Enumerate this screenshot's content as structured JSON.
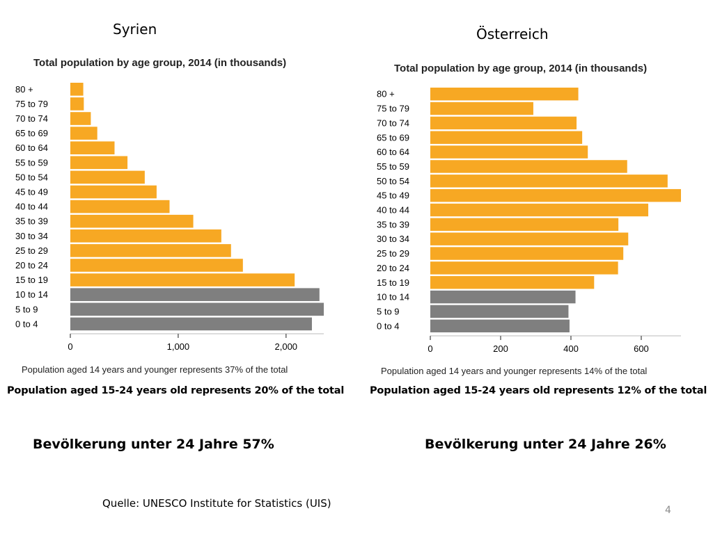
{
  "chart_data": [
    {
      "type": "bar",
      "orientation": "horizontal",
      "country": "Syrien",
      "title": "Total population by age group, 2014 (in thousands)",
      "categories": [
        "80 +",
        "75 to 79",
        "70 to 74",
        "65 to 69",
        "60 to 64",
        "55 to 59",
        "50 to 54",
        "45 to 49",
        "40 to 44",
        "35 to 39",
        "30 to 34",
        "25 to 29",
        "20 to 24",
        "15 to 19",
        "10 to 14",
        "5 to 9",
        "0 to 4"
      ],
      "values": [
        120,
        125,
        190,
        250,
        410,
        530,
        690,
        800,
        920,
        1140,
        1400,
        1490,
        1600,
        2080,
        2310,
        2350,
        2240
      ],
      "highlight": [
        false,
        false,
        false,
        false,
        false,
        false,
        false,
        false,
        false,
        false,
        false,
        false,
        false,
        false,
        true,
        true,
        true
      ],
      "xticks": [
        0,
        1000,
        2000
      ],
      "xtick_labels": [
        "0",
        "1,000",
        "2,000"
      ],
      "xlim": [
        0,
        2350
      ],
      "footnote": "Population aged 14 years and younger represents 37% of the total"
    },
    {
      "type": "bar",
      "orientation": "horizontal",
      "country": "Österreich",
      "title": "Total population by age group, 2014 (in thousands)",
      "categories": [
        "80 +",
        "75 to 79",
        "70 to 74",
        "65 to 69",
        "60 to 64",
        "55 to 59",
        "50 to 54",
        "45 to 49",
        "40 to 44",
        "35 to 39",
        "30 to 34",
        "25 to 29",
        "20 to 24",
        "15 to 19",
        "10 to 14",
        "5 to 9",
        "0 to 4"
      ],
      "values": [
        421,
        293,
        416,
        432,
        448,
        560,
        675,
        713,
        620,
        535,
        563,
        549,
        534,
        466,
        413,
        393,
        396
      ],
      "highlight": [
        false,
        false,
        false,
        false,
        false,
        false,
        false,
        false,
        false,
        false,
        false,
        false,
        false,
        false,
        true,
        true,
        true
      ],
      "xticks": [
        0,
        200,
        400,
        600
      ],
      "xtick_labels": [
        "0",
        "200",
        "400",
        "600"
      ],
      "xlim": [
        0,
        713
      ],
      "footnote": "Population aged 14 years and younger represents 14% of the total"
    }
  ],
  "colors": {
    "bar": "#f7a823",
    "highlight": "#7f7f7f",
    "axis": "#bbbbbb"
  },
  "left": {
    "country": "Syrien",
    "stat_15_24": "Population aged 15-24 years old represents 20% of the total",
    "summary": "Bevölkerung unter 24 Jahre 57%"
  },
  "right": {
    "country": "Österreich",
    "stat_15_24": "Population aged 15-24 years old represents 12% of the total",
    "summary": "Bevölkerung unter 24 Jahre 26%"
  },
  "source": "Quelle:  UNESCO Institute for Statistics (UIS)",
  "page_number": "4"
}
